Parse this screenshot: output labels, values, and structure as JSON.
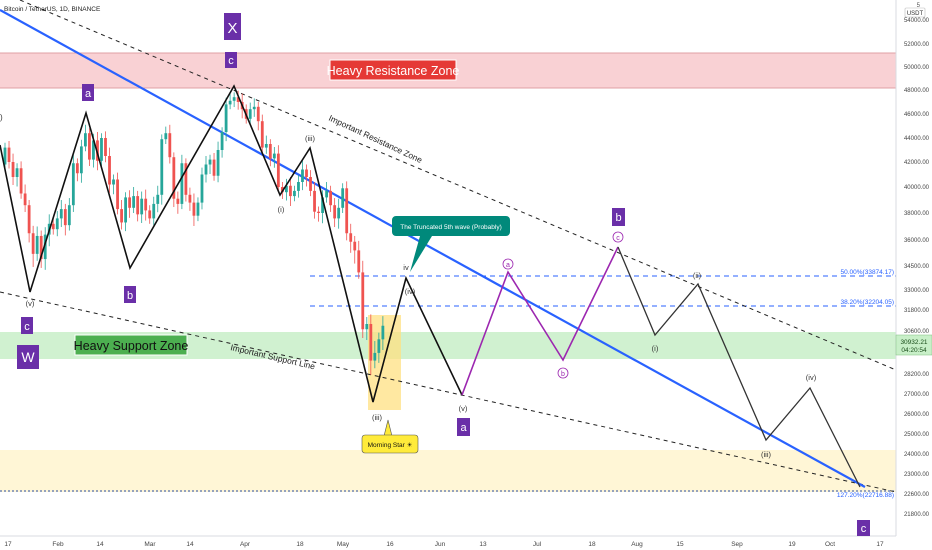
{
  "header": {
    "symbol_label": "Bitcoin / TetherUS, 1D, BINANCE"
  },
  "price_axis": {
    "currency": "USDT",
    "top_label": "5",
    "ticks": [
      54000,
      52000,
      50000,
      48000,
      46000,
      44000,
      42000,
      40000,
      38000,
      36000,
      34500,
      33000,
      31800,
      30600,
      29400,
      28200,
      27000,
      26000,
      25000,
      24000,
      23000,
      22600,
      21800
    ],
    "tick_labels": [
      "54000.00",
      "52000.00",
      "50000.00",
      "48000.00",
      "46000.00",
      "44000.00",
      "42000.00",
      "40000.00",
      "38000.00",
      "36000.00",
      "34500.00",
      "33000.00",
      "31800.00",
      "30600.00",
      "29400.00",
      "28200.00",
      "27000.00",
      "26000.00",
      "25000.00",
      "24000.00",
      "23000.00",
      "22600.00",
      "21800.00"
    ],
    "current_price": "30932.21",
    "countdown": "04:20:54"
  },
  "time_axis": {
    "labels": [
      "17",
      "Feb",
      "14",
      "Mar",
      "14",
      "Apr",
      "18",
      "May",
      "16",
      "Jun",
      "13",
      "Jul",
      "18",
      "Aug",
      "15",
      "Sep",
      "19",
      "Oct",
      "17"
    ]
  },
  "zones": {
    "resistance_label": "Heavy Resistance Zone",
    "support_label": "Heavy Support Zone",
    "support_line_label": "Important Support Line",
    "resistance_line_label": "Important Resistance Zone"
  },
  "fib_levels": [
    {
      "label": "50.00%(33874.17)",
      "price": 33874.17
    },
    {
      "label": "38.20%(32204.05)",
      "price": 32204.05
    },
    {
      "label": "127.20%(22716.88)",
      "price": 22716.88
    }
  ],
  "callouts": {
    "truncated": "The Truncated 5th wave (Probably)",
    "morning_star": "Morning Star ☀"
  },
  "waves": {
    "w": "W",
    "x": "X",
    "c_left": "c",
    "c_top": "c",
    "a_top": "a",
    "b_left": "b",
    "b_right": "b",
    "a_bottom": "a",
    "c_bottom": "c",
    "v_left": "(v)",
    "i_left": "(i)",
    "iii_top": "(iii)",
    "iii_low": "(iii)",
    "iv_small": "iv",
    "iv_paren": "(iv)",
    "v_mid": "(v)",
    "a_circle": "a",
    "b_circle": "b",
    "c_circle": "c",
    "i_right": "(i)",
    "ii_right": "(ii)",
    "iii_right": "(iii)",
    "iv_right": "(iv)",
    "paren_left": ")"
  },
  "colors": {
    "bull": "#26a69a",
    "bear": "#ef5350",
    "trend": "#2962ff",
    "resistance_fill": "#f8c9cc",
    "support_fill": "#c8efc8",
    "lower_fill": "#fff6d6",
    "wave_purple": "#9c27b0",
    "badge_purple": "#6a2fa8"
  },
  "chart_data": {
    "type": "candlestick",
    "title": "Bitcoin / TetherUS, 1D, BINANCE",
    "ylim": [
      21000,
      55000
    ],
    "xlabel": "",
    "ylabel": "",
    "candles": [
      {
        "o": 41800,
        "c": 43200
      },
      {
        "o": 43200,
        "c": 42000
      },
      {
        "o": 42000,
        "c": 40800
      },
      {
        "o": 40800,
        "c": 41500
      },
      {
        "o": 41500,
        "c": 39500
      },
      {
        "o": 39500,
        "c": 38600
      },
      {
        "o": 38600,
        "c": 36500
      },
      {
        "o": 36500,
        "c": 35200
      },
      {
        "o": 35200,
        "c": 36300
      },
      {
        "o": 36300,
        "c": 34900
      },
      {
        "o": 34900,
        "c": 36400
      },
      {
        "o": 36400,
        "c": 37200
      },
      {
        "o": 37200,
        "c": 36800
      },
      {
        "o": 36800,
        "c": 37600
      },
      {
        "o": 37600,
        "c": 38300
      },
      {
        "o": 38300,
        "c": 37100
      },
      {
        "o": 37100,
        "c": 38600
      },
      {
        "o": 38600,
        "c": 41900
      },
      {
        "o": 41900,
        "c": 41100
      },
      {
        "o": 41100,
        "c": 43300
      },
      {
        "o": 43300,
        "c": 44400
      },
      {
        "o": 44400,
        "c": 42200
      },
      {
        "o": 42200,
        "c": 43800
      },
      {
        "o": 43800,
        "c": 42100
      },
      {
        "o": 42100,
        "c": 44000
      },
      {
        "o": 44000,
        "c": 42500
      },
      {
        "o": 42500,
        "c": 40200
      },
      {
        "o": 40200,
        "c": 40600
      },
      {
        "o": 40600,
        "c": 38300
      },
      {
        "o": 38300,
        "c": 37300
      },
      {
        "o": 37300,
        "c": 39200
      },
      {
        "o": 39200,
        "c": 38400
      },
      {
        "o": 38400,
        "c": 39300
      },
      {
        "o": 39300,
        "c": 37900
      },
      {
        "o": 37900,
        "c": 39100
      },
      {
        "o": 39100,
        "c": 38200
      },
      {
        "o": 38200,
        "c": 37600
      },
      {
        "o": 37600,
        "c": 38700
      },
      {
        "o": 38700,
        "c": 39400
      },
      {
        "o": 39400,
        "c": 43900
      },
      {
        "o": 43900,
        "c": 44400
      },
      {
        "o": 44400,
        "c": 42400
      },
      {
        "o": 42400,
        "c": 39100
      },
      {
        "o": 39100,
        "c": 38700
      },
      {
        "o": 38700,
        "c": 41900
      },
      {
        "o": 41900,
        "c": 39400
      },
      {
        "o": 39400,
        "c": 38800
      },
      {
        "o": 38800,
        "c": 37800
      },
      {
        "o": 37800,
        "c": 38800
      },
      {
        "o": 38800,
        "c": 41000
      },
      {
        "o": 41000,
        "c": 41800
      },
      {
        "o": 41800,
        "c": 42200
      },
      {
        "o": 42200,
        "c": 40900
      },
      {
        "o": 40900,
        "c": 43000
      },
      {
        "o": 43000,
        "c": 44500
      },
      {
        "o": 44500,
        "c": 46800
      },
      {
        "o": 46800,
        "c": 47100
      },
      {
        "o": 47100,
        "c": 47400
      },
      {
        "o": 47400,
        "c": 47000
      },
      {
        "o": 47000,
        "c": 46400
      },
      {
        "o": 46400,
        "c": 45600
      },
      {
        "o": 45600,
        "c": 46400
      },
      {
        "o": 46400,
        "c": 46600
      },
      {
        "o": 46600,
        "c": 45400
      },
      {
        "o": 45400,
        "c": 43200
      },
      {
        "o": 43200,
        "c": 43500
      },
      {
        "o": 43500,
        "c": 42300
      },
      {
        "o": 42300,
        "c": 42700
      },
      {
        "o": 42700,
        "c": 40000
      },
      {
        "o": 40000,
        "c": 39600
      },
      {
        "o": 39600,
        "c": 40100
      },
      {
        "o": 40100,
        "c": 39300
      },
      {
        "o": 39300,
        "c": 39700
      },
      {
        "o": 39700,
        "c": 40400
      },
      {
        "o": 40400,
        "c": 41400
      },
      {
        "o": 41400,
        "c": 40800
      },
      {
        "o": 40800,
        "c": 39700
      },
      {
        "o": 39700,
        "c": 38100
      },
      {
        "o": 38100,
        "c": 38000
      },
      {
        "o": 38000,
        "c": 39200
      },
      {
        "o": 39200,
        "c": 39700
      },
      {
        "o": 39700,
        "c": 38600
      },
      {
        "o": 38600,
        "c": 37600
      },
      {
        "o": 37600,
        "c": 38400
      },
      {
        "o": 38400,
        "c": 39900
      },
      {
        "o": 39900,
        "c": 36500
      },
      {
        "o": 36500,
        "c": 35900
      },
      {
        "o": 35900,
        "c": 35400
      },
      {
        "o": 35400,
        "c": 34100
      },
      {
        "o": 34100,
        "c": 30700
      },
      {
        "o": 30700,
        "c": 31000
      },
      {
        "o": 31000,
        "c": 28900
      },
      {
        "o": 28900,
        "c": 29300
      },
      {
        "o": 29300,
        "c": 30100
      },
      {
        "o": 30100,
        "c": 30900
      }
    ]
  }
}
